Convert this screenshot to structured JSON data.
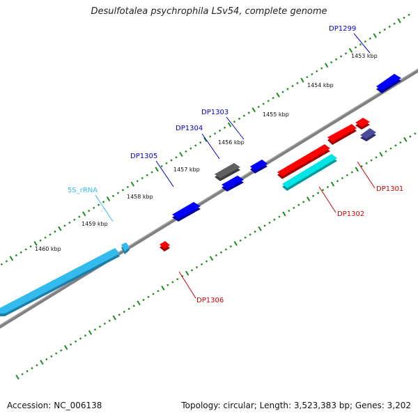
{
  "title": "Desulfotalea psychrophila LSv54, complete genome",
  "footer": {
    "accession": "Accession: NC_006138",
    "topology": "Topology: circular; Length: 3,523,383 bp; Genes: 3,202"
  },
  "colors": {
    "backbone": "#808080",
    "tick": "#1a8a1a",
    "forward_gene": "#0000ff",
    "reverse_gene": "#ff0000",
    "rrna": "#33bbee",
    "cyan_gene": "#00e5e5",
    "gray_gene": "#606060",
    "purple_gene": "#4b4b9c"
  },
  "scale_labels": [
    {
      "text": "1453 kbp"
    },
    {
      "text": "1454 kbp"
    },
    {
      "text": "1455 kbp"
    },
    {
      "text": "1456 kbp"
    },
    {
      "text": "1457 kbp"
    },
    {
      "text": "1458 kbp"
    },
    {
      "text": "1459 kbp"
    },
    {
      "text": "1460 kbp"
    }
  ],
  "gene_labels": [
    {
      "id": "DP1299",
      "text": "DP1299",
      "color": "#0000cc"
    },
    {
      "id": "DP1303",
      "text": "DP1303",
      "color": "#0000cc"
    },
    {
      "id": "DP1304",
      "text": "DP1304",
      "color": "#0000cc"
    },
    {
      "id": "DP1305",
      "text": "DP1305",
      "color": "#0000cc"
    },
    {
      "id": "5S_rRNA",
      "text": "5S_rRNA",
      "color": "#33bbee"
    },
    {
      "id": "DP1301",
      "text": "DP1301",
      "color": "#cc0000"
    },
    {
      "id": "DP1302",
      "text": "DP1302",
      "color": "#cc0000"
    },
    {
      "id": "DP1306",
      "text": "DP1306",
      "color": "#cc0000"
    }
  ]
}
